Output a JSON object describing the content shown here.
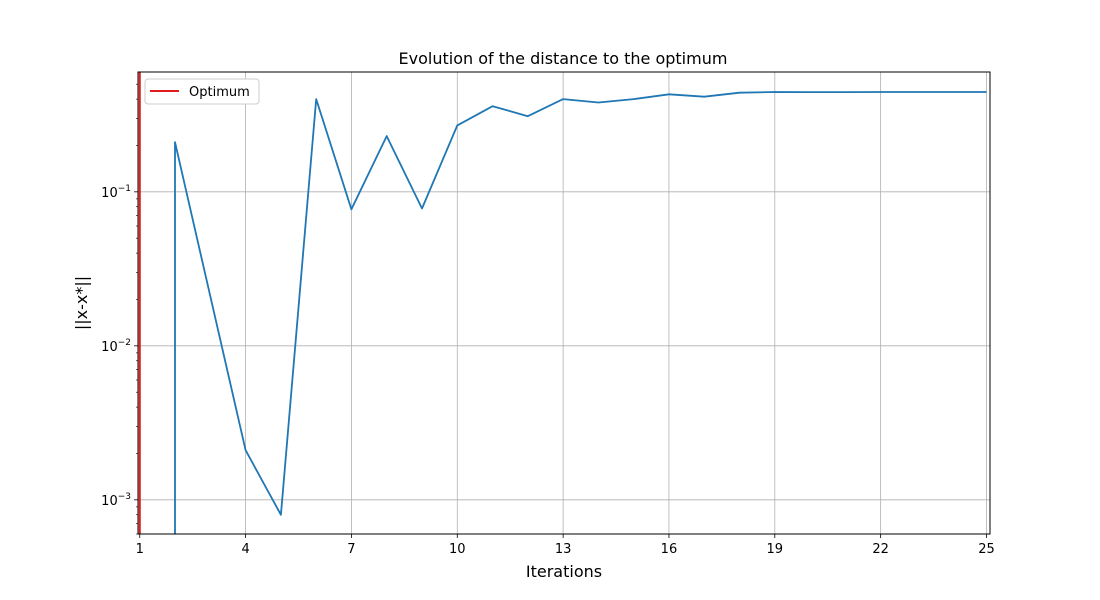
{
  "chart_data": {
    "type": "line",
    "title": "Evolution of the distance to the optimum",
    "xlabel": "Iterations",
    "ylabel": "||x-x*||",
    "xlim": [
      0.95,
      25.1
    ],
    "ylim": [
      0.0006,
      0.6
    ],
    "yscale": "log",
    "grid": true,
    "legend_position": "top-left",
    "xticks": [
      1,
      4,
      7,
      10,
      13,
      16,
      19,
      22,
      25
    ],
    "yticks": [
      {
        "base": "10",
        "exp": "-3",
        "value": 0.001
      },
      {
        "base": "10",
        "exp": "-2",
        "value": 0.01
      },
      {
        "base": "10",
        "exp": "-1",
        "value": 0.1
      }
    ],
    "series": [
      {
        "color": "#1f77b4",
        "x": [
          2,
          2,
          3,
          4,
          5,
          6,
          7,
          8,
          9,
          10,
          11,
          12,
          13,
          14,
          15,
          16,
          17,
          18,
          19,
          20,
          21,
          22,
          23,
          24,
          25
        ],
        "y": [
          0.0006,
          0.21,
          0.021,
          0.0021,
          0.0008,
          0.4,
          0.077,
          0.23,
          0.078,
          0.27,
          0.36,
          0.31,
          0.4,
          0.38,
          0.4,
          0.43,
          0.415,
          0.44,
          0.445,
          0.444,
          0.444,
          0.445,
          0.445,
          0.445,
          0.445
        ]
      }
    ],
    "optimum": {
      "name": "Optimum",
      "x": 1,
      "color": "#e31a1c"
    }
  }
}
